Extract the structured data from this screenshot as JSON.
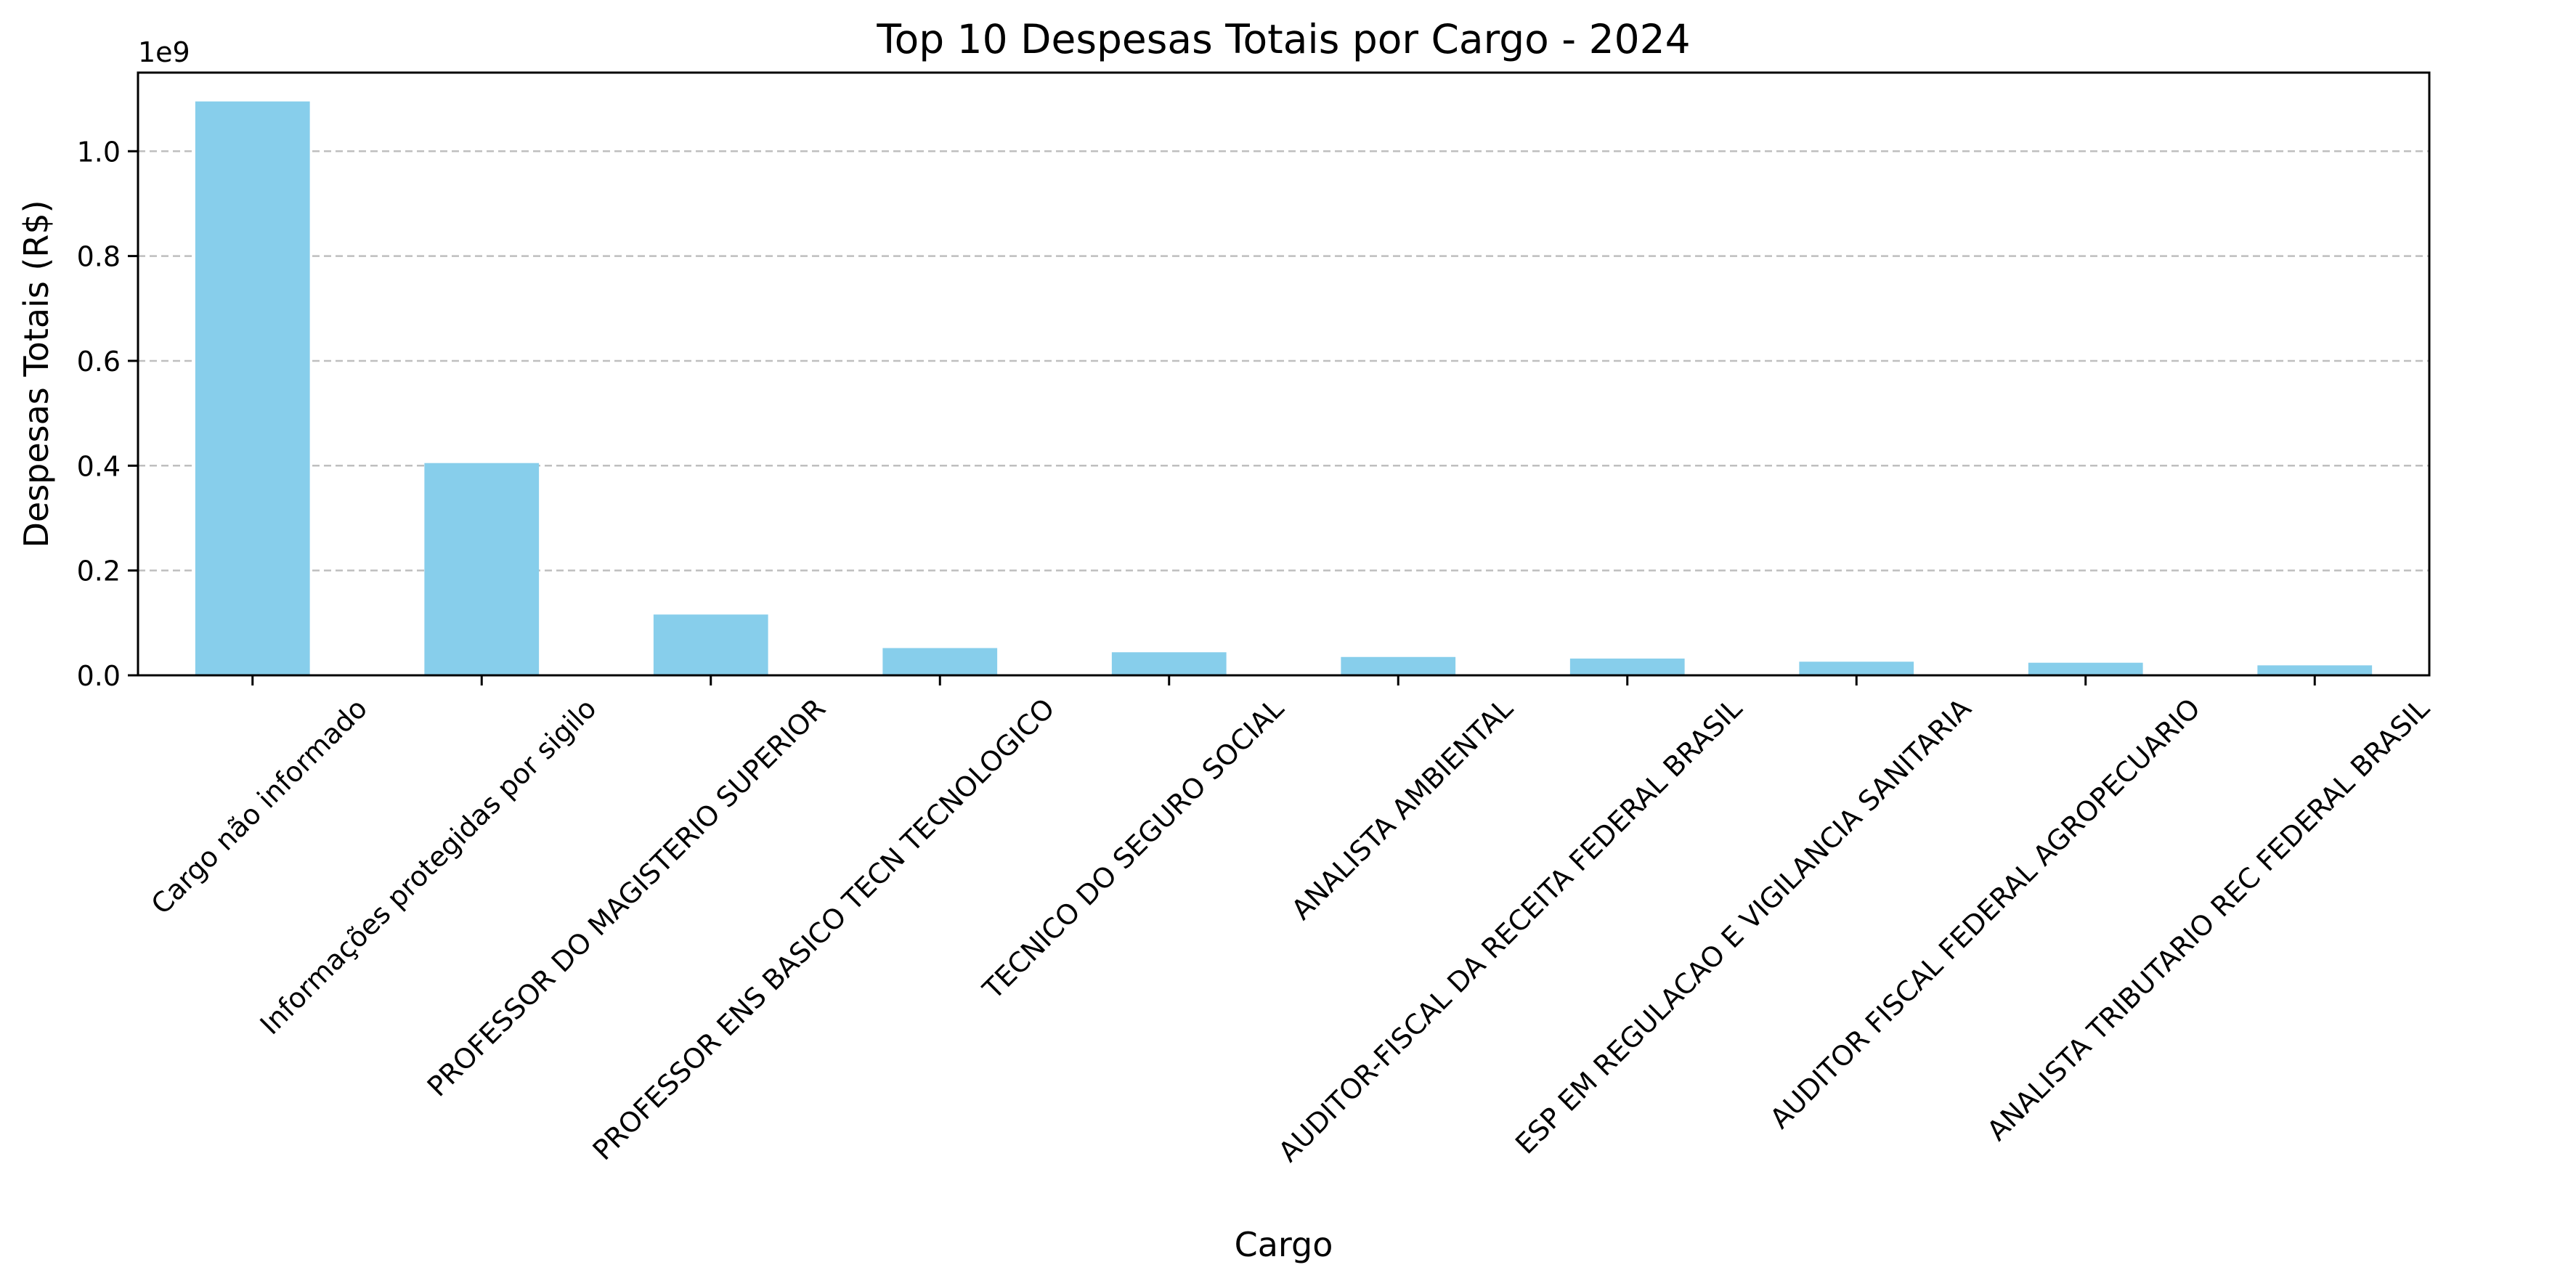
{
  "chart_data": {
    "type": "bar",
    "title": "Top 10 Despesas Totais por Cargo - 2024",
    "xlabel": "Cargo",
    "ylabel": "Despesas Totais (R$)",
    "offset_label": "1e9",
    "categories": [
      "Cargo não informado",
      "Informações protegidas por sigilo",
      "PROFESSOR DO MAGISTERIO SUPERIOR",
      "PROFESSOR ENS BASICO TECN TECNOLOGICO",
      "TECNICO DO SEGURO SOCIAL",
      "ANALISTA AMBIENTAL",
      "AUDITOR-FISCAL DA RECEITA FEDERAL BRASIL",
      "ESP EM REGULACAO E VIGILANCIA SANITARIA",
      "AUDITOR FISCAL FEDERAL AGROPECUARIO",
      "ANALISTA TRIBUTARIO REC FEDERAL BRASIL"
    ],
    "values": [
      1.095,
      0.405,
      0.116,
      0.052,
      0.044,
      0.035,
      0.032,
      0.026,
      0.024,
      0.019
    ],
    "value_scale": 1000000000,
    "yticks": [
      0.0,
      0.2,
      0.4,
      0.6,
      0.8,
      1.0
    ],
    "ytick_labels": [
      "0.0",
      "0.2",
      "0.4",
      "0.6",
      "0.8",
      "1.0"
    ],
    "ylim": [
      0,
      1.15
    ],
    "bar_color": "#87ceeb",
    "grid": {
      "axis": "y",
      "style": "dashed",
      "color": "#bfbfbf"
    },
    "legend": "none"
  }
}
